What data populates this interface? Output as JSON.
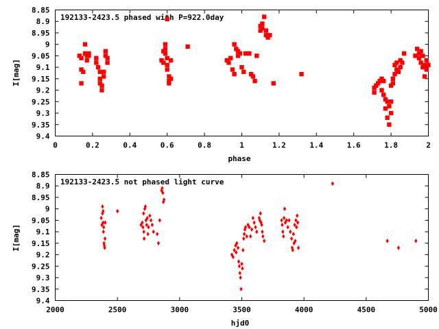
{
  "chart_data": [
    {
      "type": "scatter",
      "title": "192133-2423.5 phased with P=922.0day",
      "xlabel": "phase",
      "ylabel": "I[mag]",
      "xlim": [
        0,
        2
      ],
      "ylim": [
        9.4,
        8.85
      ],
      "y_inverted": true,
      "grid": false,
      "marker_color": "#ff0000",
      "x_ticks": [
        "0",
        "0.2",
        "0.4",
        "0.6",
        "0.8",
        "1",
        "1.2",
        "1.4",
        "1.6",
        "1.8",
        "2"
      ],
      "y_ticks": [
        "8.85",
        "8.9",
        "8.95",
        "9",
        "9.05",
        "9.1",
        "9.15",
        "9.2",
        "9.25",
        "9.3",
        "9.35",
        "9.4"
      ],
      "points": [
        [
          0.13,
          9.05
        ],
        [
          0.14,
          9.06
        ],
        [
          0.14,
          9.11
        ],
        [
          0.15,
          9.12
        ],
        [
          0.14,
          9.17
        ],
        [
          0.16,
          9.0
        ],
        [
          0.16,
          9.04
        ],
        [
          0.17,
          9.05
        ],
        [
          0.17,
          9.07
        ],
        [
          0.18,
          9.05
        ],
        [
          0.18,
          9.04
        ],
        [
          0.22,
          9.06
        ],
        [
          0.22,
          9.08
        ],
        [
          0.23,
          9.1
        ],
        [
          0.24,
          9.12
        ],
        [
          0.24,
          9.15
        ],
        [
          0.24,
          9.17
        ],
        [
          0.25,
          9.2
        ],
        [
          0.25,
          9.18
        ],
        [
          0.26,
          9.14
        ],
        [
          0.26,
          9.12
        ],
        [
          0.27,
          9.03
        ],
        [
          0.27,
          9.05
        ],
        [
          0.28,
          9.06
        ],
        [
          0.28,
          9.08
        ],
        [
          0.57,
          9.07
        ],
        [
          0.58,
          9.08
        ],
        [
          0.58,
          9.03
        ],
        [
          0.59,
          9.0
        ],
        [
          0.59,
          9.02
        ],
        [
          0.59,
          9.04
        ],
        [
          0.6,
          9.06
        ],
        [
          0.6,
          9.09
        ],
        [
          0.6,
          9.11
        ],
        [
          0.6,
          8.89
        ],
        [
          0.61,
          9.14
        ],
        [
          0.61,
          9.16
        ],
        [
          0.61,
          9.17
        ],
        [
          0.62,
          9.15
        ],
        [
          0.62,
          9.07
        ],
        [
          0.71,
          9.01
        ],
        [
          0.92,
          9.07
        ],
        [
          0.93,
          9.08
        ],
        [
          0.94,
          9.06
        ],
        [
          0.95,
          9.11
        ],
        [
          0.96,
          9.13
        ],
        [
          0.96,
          9.0
        ],
        [
          0.97,
          9.02
        ],
        [
          0.98,
          9.03
        ],
        [
          0.98,
          9.05
        ],
        [
          0.99,
          9.04
        ],
        [
          1.0,
          9.1
        ],
        [
          1.01,
          9.12
        ],
        [
          1.02,
          9.04
        ],
        [
          1.04,
          9.04
        ],
        [
          1.05,
          9.13
        ],
        [
          1.06,
          9.14
        ],
        [
          1.07,
          9.16
        ],
        [
          1.08,
          9.05
        ],
        [
          1.1,
          8.92
        ],
        [
          1.1,
          8.94
        ],
        [
          1.11,
          8.91
        ],
        [
          1.11,
          8.93
        ],
        [
          1.12,
          8.88
        ],
        [
          1.13,
          8.94
        ],
        [
          1.13,
          8.96
        ],
        [
          1.14,
          8.97
        ],
        [
          1.15,
          8.96
        ],
        [
          1.17,
          9.17
        ],
        [
          1.32,
          9.13
        ],
        [
          1.71,
          9.19
        ],
        [
          1.71,
          9.21
        ],
        [
          1.72,
          9.18
        ],
        [
          1.73,
          9.17
        ],
        [
          1.74,
          9.16
        ],
        [
          1.75,
          9.15
        ],
        [
          1.75,
          9.2
        ],
        [
          1.76,
          9.16
        ],
        [
          1.76,
          9.22
        ],
        [
          1.77,
          9.24
        ],
        [
          1.77,
          9.28
        ],
        [
          1.78,
          9.25
        ],
        [
          1.78,
          9.32
        ],
        [
          1.79,
          9.35
        ],
        [
          1.79,
          9.27
        ],
        [
          1.8,
          9.25
        ],
        [
          1.8,
          9.3
        ],
        [
          1.8,
          9.18
        ],
        [
          1.81,
          9.15
        ],
        [
          1.81,
          9.17
        ],
        [
          1.82,
          9.13
        ],
        [
          1.82,
          9.09
        ],
        [
          1.83,
          9.11
        ],
        [
          1.83,
          9.08
        ],
        [
          1.84,
          9.12
        ],
        [
          1.85,
          9.1
        ],
        [
          1.85,
          9.07
        ],
        [
          1.86,
          9.08
        ],
        [
          1.87,
          9.04
        ],
        [
          1.93,
          9.05
        ],
        [
          1.94,
          9.02
        ],
        [
          1.95,
          9.04
        ],
        [
          1.95,
          9.06
        ],
        [
          1.96,
          9.08
        ],
        [
          1.96,
          9.03
        ],
        [
          1.97,
          9.05
        ],
        [
          1.97,
          9.1
        ],
        [
          1.98,
          9.09
        ],
        [
          1.98,
          9.14
        ],
        [
          1.99,
          9.11
        ],
        [
          1.99,
          9.07
        ],
        [
          2.0,
          9.09
        ]
      ]
    },
    {
      "type": "scatter",
      "title": "192133-2423.5 not phased light curve",
      "xlabel": "hjd0",
      "ylabel": "I[mag]",
      "xlim": [
        2000,
        5000
      ],
      "ylim": [
        9.4,
        8.85
      ],
      "y_inverted": true,
      "grid": false,
      "marker_color": "#ff0000",
      "x_ticks": [
        "2000",
        "2500",
        "3000",
        "3500",
        "4000",
        "4500",
        "5000"
      ],
      "y_ticks": [
        "8.85",
        "8.9",
        "8.95",
        "9",
        "9.05",
        "9.1",
        "9.15",
        "9.2",
        "9.25",
        "9.3",
        "9.35",
        "9.4"
      ],
      "points": [
        [
          2370,
          9.04
        ],
        [
          2375,
          9.07
        ],
        [
          2380,
          8.99
        ],
        [
          2380,
          9.02
        ],
        [
          2385,
          9.01
        ],
        [
          2385,
          9.06
        ],
        [
          2388,
          9.1
        ],
        [
          2390,
          9.08
        ],
        [
          2392,
          9.15
        ],
        [
          2395,
          9.16
        ],
        [
          2398,
          9.17
        ],
        [
          2400,
          9.13
        ],
        [
          2402,
          9.06
        ],
        [
          2500,
          9.01
        ],
        [
          2690,
          9.07
        ],
        [
          2700,
          9.06
        ],
        [
          2705,
          9.08
        ],
        [
          2710,
          9.02
        ],
        [
          2712,
          9.1
        ],
        [
          2715,
          9.13
        ],
        [
          2720,
          9.0
        ],
        [
          2725,
          8.99
        ],
        [
          2730,
          9.05
        ],
        [
          2735,
          9.07
        ],
        [
          2740,
          9.04
        ],
        [
          2745,
          9.11
        ],
        [
          2750,
          9.08
        ],
        [
          2760,
          9.03
        ],
        [
          2770,
          9.05
        ],
        [
          2780,
          9.07
        ],
        [
          2790,
          9.1
        ],
        [
          2820,
          9.11
        ],
        [
          2830,
          9.15
        ],
        [
          2840,
          9.05
        ],
        [
          2855,
          8.92
        ],
        [
          2860,
          8.91
        ],
        [
          2865,
          8.93
        ],
        [
          2870,
          8.97
        ],
        [
          2875,
          8.96
        ],
        [
          3420,
          9.2
        ],
        [
          3430,
          9.21
        ],
        [
          3440,
          9.18
        ],
        [
          3450,
          9.16
        ],
        [
          3455,
          9.19
        ],
        [
          3460,
          9.15
        ],
        [
          3470,
          9.17
        ],
        [
          3475,
          9.23
        ],
        [
          3480,
          9.25
        ],
        [
          3485,
          9.28
        ],
        [
          3490,
          9.3
        ],
        [
          3495,
          9.35
        ],
        [
          3500,
          9.24
        ],
        [
          3505,
          9.26
        ],
        [
          3510,
          9.18
        ],
        [
          3515,
          9.13
        ],
        [
          3520,
          9.11
        ],
        [
          3525,
          9.09
        ],
        [
          3530,
          9.08
        ],
        [
          3540,
          9.12
        ],
        [
          3550,
          9.07
        ],
        [
          3560,
          9.08
        ],
        [
          3570,
          9.12
        ],
        [
          3580,
          9.09
        ],
        [
          3590,
          9.04
        ],
        [
          3600,
          9.06
        ],
        [
          3610,
          9.08
        ],
        [
          3620,
          9.1
        ],
        [
          3640,
          9.04
        ],
        [
          3645,
          9.05
        ],
        [
          3650,
          9.02
        ],
        [
          3655,
          9.06
        ],
        [
          3660,
          9.07
        ],
        [
          3665,
          9.1
        ],
        [
          3670,
          9.12
        ],
        [
          3680,
          9.14
        ],
        [
          3820,
          9.05
        ],
        [
          3825,
          9.07
        ],
        [
          3830,
          9.1
        ],
        [
          3835,
          9.12
        ],
        [
          3840,
          9.04
        ],
        [
          3845,
          9.0
        ],
        [
          3850,
          9.06
        ],
        [
          3860,
          9.05
        ],
        [
          3870,
          9.08
        ],
        [
          3880,
          9.05
        ],
        [
          3890,
          9.1
        ],
        [
          3900,
          9.13
        ],
        [
          3905,
          9.17
        ],
        [
          3910,
          9.18
        ],
        [
          3915,
          9.11
        ],
        [
          3920,
          9.15
        ],
        [
          3925,
          9.07
        ],
        [
          3930,
          9.14
        ],
        [
          3935,
          9.05
        ],
        [
          3940,
          9.08
        ],
        [
          3945,
          9.03
        ],
        [
          3950,
          9.06
        ],
        [
          3955,
          9.17
        ],
        [
          4230,
          8.89
        ],
        [
          4670,
          9.14
        ],
        [
          4760,
          9.17
        ],
        [
          4900,
          9.14
        ]
      ]
    }
  ]
}
